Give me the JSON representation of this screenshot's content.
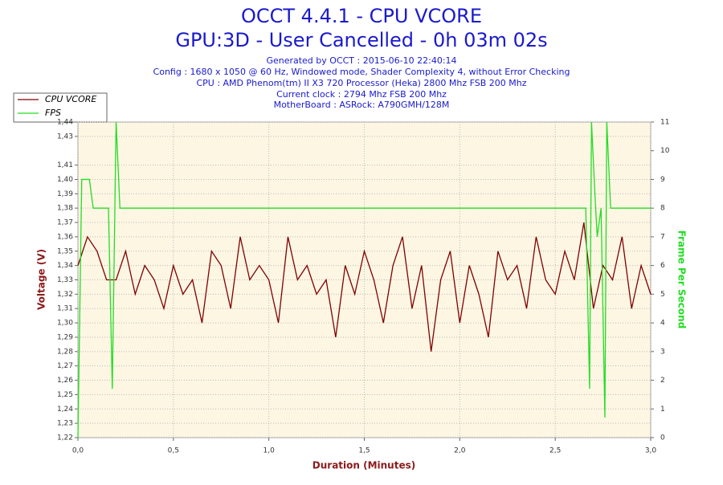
{
  "chart_data": {
    "type": "line",
    "title": [
      "OCCT 4.4.1 - CPU VCORE",
      "GPU:3D - User Cancelled - 0h 03m 02s"
    ],
    "info": [
      "Generated by OCCT : 2015-06-10 22:40:14",
      "Config : 1680 x 1050 @ 60 Hz, Windowed mode, Shader Complexity 4, without Error Checking",
      "CPU : AMD Phenom(tm) II X3 720 Processor (Heka) 2800 Mhz FSB 200 Mhz",
      "Current clock : 2794 Mhz FSB 200 Mhz",
      "MotherBoard : ASRock: A790GMH/128M"
    ],
    "x_label": "Duration (Minutes)",
    "y_label": "Voltage (V)",
    "y2_label": "Frame Per Second",
    "xlim": [
      0,
      3
    ],
    "xticks": [
      {
        "value": 0,
        "label": "0,0"
      },
      {
        "value": 0.5,
        "label": "0,5"
      },
      {
        "value": 1,
        "label": "1,0"
      },
      {
        "value": 1.5,
        "label": "1,5"
      },
      {
        "value": 2,
        "label": "2,0"
      },
      {
        "value": 2.5,
        "label": "2,5"
      },
      {
        "value": 3,
        "label": "3,0"
      }
    ],
    "ylim": [
      1.22,
      1.44
    ],
    "yticks": [
      {
        "value": 1.22,
        "label": "1,22"
      },
      {
        "value": 1.23,
        "label": "1,23"
      },
      {
        "value": 1.24,
        "label": "1,24"
      },
      {
        "value": 1.25,
        "label": "1,25"
      },
      {
        "value": 1.26,
        "label": "1,26"
      },
      {
        "value": 1.27,
        "label": "1,27"
      },
      {
        "value": 1.28,
        "label": "1,28"
      },
      {
        "value": 1.29,
        "label": "1,29"
      },
      {
        "value": 1.3,
        "label": "1,30"
      },
      {
        "value": 1.31,
        "label": "1,31"
      },
      {
        "value": 1.32,
        "label": "1,32"
      },
      {
        "value": 1.33,
        "label": "1,33"
      },
      {
        "value": 1.34,
        "label": "1,34"
      },
      {
        "value": 1.35,
        "label": "1,35"
      },
      {
        "value": 1.36,
        "label": "1,36"
      },
      {
        "value": 1.37,
        "label": "1,37"
      },
      {
        "value": 1.38,
        "label": "1,38"
      },
      {
        "value": 1.39,
        "label": "1,39"
      },
      {
        "value": 1.4,
        "label": "1,40"
      },
      {
        "value": 1.41,
        "label": "1,41"
      },
      {
        "value": 1.43,
        "label": "1,43"
      },
      {
        "value": 1.44,
        "label": "1,44"
      }
    ],
    "y2lim": [
      0,
      11
    ],
    "y2ticks": [
      0,
      1,
      2,
      3,
      4,
      5,
      6,
      7,
      8,
      9,
      10,
      11
    ],
    "grid": true,
    "series": [
      {
        "name": "CPU VCORE",
        "color": "#800000",
        "axis": "y",
        "x": [
          0,
          0.05,
          0.1,
          0.15,
          0.2,
          0.25,
          0.3,
          0.35,
          0.4,
          0.45,
          0.5,
          0.55,
          0.6,
          0.65,
          0.7,
          0.75,
          0.8,
          0.85,
          0.9,
          0.95,
          1,
          1.05,
          1.1,
          1.15,
          1.2,
          1.25,
          1.3,
          1.35,
          1.4,
          1.45,
          1.5,
          1.55,
          1.6,
          1.65,
          1.7,
          1.75,
          1.8,
          1.85,
          1.9,
          1.95,
          2,
          2.05,
          2.1,
          2.15,
          2.2,
          2.25,
          2.3,
          2.35,
          2.4,
          2.45,
          2.5,
          2.55,
          2.6,
          2.65,
          2.7,
          2.75,
          2.8,
          2.85,
          2.9,
          2.95,
          3
        ],
        "values": [
          1.34,
          1.36,
          1.35,
          1.33,
          1.33,
          1.35,
          1.32,
          1.34,
          1.33,
          1.31,
          1.34,
          1.32,
          1.33,
          1.3,
          1.35,
          1.34,
          1.31,
          1.36,
          1.33,
          1.34,
          1.33,
          1.3,
          1.36,
          1.33,
          1.34,
          1.32,
          1.33,
          1.29,
          1.34,
          1.32,
          1.35,
          1.33,
          1.3,
          1.34,
          1.36,
          1.31,
          1.34,
          1.28,
          1.33,
          1.35,
          1.3,
          1.34,
          1.32,
          1.29,
          1.35,
          1.33,
          1.34,
          1.31,
          1.36,
          1.33,
          1.32,
          1.35,
          1.33,
          1.37,
          1.31,
          1.34,
          1.33,
          1.36,
          1.31,
          1.34,
          1.32
        ]
      },
      {
        "name": "FPS",
        "color": "#22dd22",
        "axis": "y2",
        "x": [
          0,
          0.02,
          0.06,
          0.08,
          0.16,
          0.18,
          0.2,
          0.22,
          0.5,
          1,
          1.5,
          2,
          2.5,
          2.66,
          2.68,
          2.69,
          2.71,
          2.72,
          2.74,
          2.76,
          2.77,
          2.79,
          2.9,
          3
        ],
        "values": [
          0,
          9,
          9,
          8,
          8,
          1.7,
          11,
          8,
          8,
          8,
          8,
          8,
          8,
          8,
          1.7,
          11,
          8.2,
          7,
          8,
          0.7,
          11,
          8,
          8,
          8
        ]
      }
    ]
  }
}
